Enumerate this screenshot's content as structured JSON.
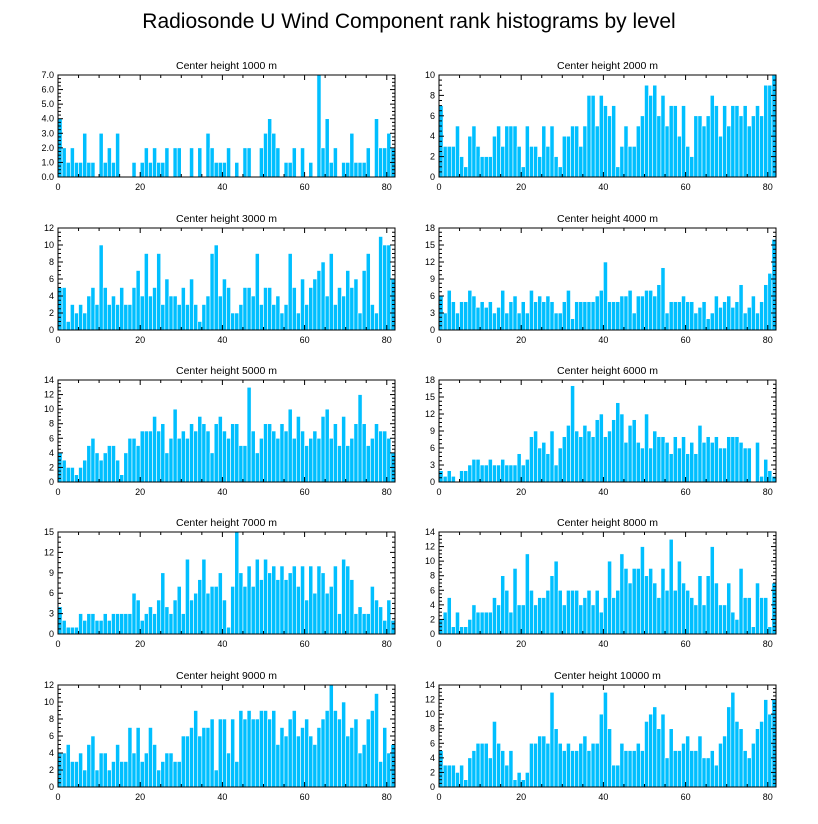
{
  "title": "Radiosonde U Wind Component rank histograms by level",
  "colors": {
    "bar": "#00bfff",
    "bar_edge": "#ffffff",
    "axis": "#000000"
  },
  "chart_data": [
    {
      "type": "bar",
      "title": "Center height 1000 m",
      "xlim": [
        0,
        82
      ],
      "ylim": [
        0,
        7
      ],
      "yticks": [
        "0.0",
        "1.0",
        "2.0",
        "3.0",
        "4.0",
        "5.0",
        "6.0",
        "7.0"
      ],
      "ytick_values": [
        0,
        1,
        2,
        3,
        4,
        5,
        6,
        7
      ],
      "xticks": [
        "0",
        "20",
        "40",
        "60",
        "80"
      ],
      "values": [
        4,
        2,
        1,
        2,
        1,
        1,
        3,
        1,
        1,
        0,
        3,
        1,
        2,
        1,
        3,
        0,
        0,
        0,
        1,
        0,
        1,
        2,
        1,
        2,
        1,
        1,
        2,
        0,
        2,
        2,
        0,
        0,
        2,
        0,
        2,
        0,
        3,
        2,
        1,
        1,
        1,
        2,
        0,
        1,
        0,
        2,
        2,
        0,
        0,
        2,
        3,
        4,
        3,
        2,
        0,
        1,
        1,
        2,
        0,
        2,
        0,
        1,
        0,
        7,
        2,
        4,
        1,
        2,
        0,
        1,
        1,
        3,
        1,
        1,
        1,
        2,
        0,
        4,
        2,
        2,
        3,
        2
      ]
    },
    {
      "type": "bar",
      "title": "Center height 2000 m",
      "xlim": [
        0,
        82
      ],
      "ylim": [
        0,
        10
      ],
      "yticks": [
        "0",
        "2",
        "4",
        "6",
        "8",
        "10"
      ],
      "ytick_values": [
        0,
        2,
        4,
        6,
        8,
        10
      ],
      "xticks": [
        "0",
        "20",
        "40",
        "60",
        "80"
      ],
      "values": [
        7,
        3,
        3,
        3,
        5,
        2,
        1,
        4,
        5,
        3,
        2,
        2,
        2,
        4,
        5,
        3,
        5,
        5,
        5,
        3,
        1,
        5,
        3,
        3,
        2,
        5,
        3,
        5,
        2,
        1,
        4,
        4,
        5,
        5,
        3,
        5,
        8,
        8,
        5,
        8,
        7,
        6,
        7,
        1,
        3,
        5,
        3,
        3,
        5,
        6,
        9,
        8,
        9,
        6,
        8,
        5,
        7,
        7,
        4,
        7,
        3,
        2,
        6,
        6,
        5,
        6,
        8,
        7,
        4,
        7,
        5,
        7,
        7,
        6,
        7,
        5,
        6,
        7,
        6,
        9,
        9,
        10
      ]
    },
    {
      "type": "bar",
      "title": "Center height 3000 m",
      "xlim": [
        0,
        82
      ],
      "ylim": [
        0,
        12
      ],
      "yticks": [
        "0",
        "2",
        "4",
        "6",
        "8",
        "10",
        "12"
      ],
      "ytick_values": [
        0,
        2,
        4,
        6,
        8,
        10,
        12
      ],
      "xticks": [
        "0",
        "20",
        "40",
        "60",
        "80"
      ],
      "values": [
        5,
        5,
        1,
        3,
        2,
        3,
        2,
        4,
        5,
        3,
        10,
        5,
        3,
        4,
        3,
        5,
        3,
        3,
        5,
        7,
        4,
        9,
        4,
        5,
        9,
        3,
        6,
        4,
        4,
        3,
        5,
        3,
        6,
        3,
        1,
        3,
        4,
        9,
        10,
        4,
        6,
        5,
        2,
        2,
        3,
        5,
        5,
        4,
        9,
        3,
        5,
        5,
        3,
        4,
        2,
        3,
        9,
        5,
        2,
        6,
        3,
        5,
        6,
        7,
        8,
        4,
        9,
        3,
        5,
        4,
        7,
        5,
        6,
        2,
        7,
        9,
        3,
        2,
        11,
        10,
        10,
        6
      ]
    },
    {
      "type": "bar",
      "title": "Center height 4000 m",
      "xlim": [
        0,
        82
      ],
      "ylim": [
        0,
        18
      ],
      "yticks": [
        "0",
        "3",
        "6",
        "9",
        "12",
        "15",
        "18"
      ],
      "ytick_values": [
        0,
        3,
        6,
        9,
        12,
        15,
        18
      ],
      "xticks": [
        "0",
        "20",
        "40",
        "60",
        "80"
      ],
      "values": [
        6,
        3,
        7,
        5,
        3,
        5,
        5,
        7,
        6,
        4,
        5,
        4,
        5,
        3,
        4,
        7,
        3,
        5,
        6,
        3,
        5,
        3,
        7,
        5,
        6,
        5,
        6,
        5,
        3,
        3,
        5,
        7,
        2,
        5,
        5,
        5,
        5,
        5,
        6,
        7,
        12,
        5,
        5,
        5,
        6,
        6,
        7,
        3,
        6,
        6,
        7,
        7,
        6,
        8,
        11,
        3,
        5,
        5,
        5,
        6,
        5,
        5,
        3,
        4,
        5,
        2,
        3,
        6,
        4,
        5,
        6,
        4,
        5,
        8,
        3,
        4,
        6,
        3,
        5,
        8,
        10,
        16
      ]
    },
    {
      "type": "bar",
      "title": "Center height 5000 m",
      "xlim": [
        0,
        82
      ],
      "ylim": [
        0,
        14
      ],
      "yticks": [
        "0",
        "2",
        "4",
        "6",
        "8",
        "10",
        "12",
        "14"
      ],
      "ytick_values": [
        0,
        2,
        4,
        6,
        8,
        10,
        12,
        14
      ],
      "xticks": [
        "0",
        "20",
        "40",
        "60",
        "80"
      ],
      "values": [
        4,
        3,
        2,
        2,
        1,
        2,
        3,
        5,
        6,
        4,
        3,
        4,
        5,
        5,
        3,
        1,
        4,
        6,
        6,
        5,
        7,
        7,
        7,
        9,
        7,
        8,
        4,
        6,
        10,
        6,
        7,
        6,
        8,
        7,
        9,
        8,
        7,
        4,
        8,
        9,
        7,
        6,
        8,
        8,
        5,
        5,
        13,
        7,
        4,
        6,
        8,
        8,
        7,
        6,
        8,
        7,
        10,
        6,
        9,
        7,
        5,
        6,
        7,
        6,
        9,
        10,
        6,
        8,
        5,
        9,
        5,
        6,
        8,
        12,
        8,
        5,
        6,
        8,
        7,
        7,
        6,
        4
      ]
    },
    {
      "type": "bar",
      "title": "Center height 6000 m",
      "xlim": [
        0,
        82
      ],
      "ylim": [
        0,
        18
      ],
      "yticks": [
        "0",
        "3",
        "6",
        "9",
        "12",
        "15",
        "18"
      ],
      "ytick_values": [
        0,
        3,
        6,
        9,
        12,
        15,
        18
      ],
      "xticks": [
        "0",
        "20",
        "40",
        "60",
        "80"
      ],
      "values": [
        2,
        1,
        2,
        1,
        0,
        2,
        2,
        3,
        4,
        4,
        3,
        3,
        4,
        3,
        3,
        4,
        3,
        3,
        3,
        5,
        3,
        4,
        8,
        9,
        6,
        7,
        5,
        9,
        3,
        6,
        8,
        10,
        17,
        9,
        8,
        10,
        9,
        8,
        11,
        12,
        8,
        9,
        11,
        14,
        12,
        7,
        10,
        11,
        7,
        6,
        12,
        6,
        9,
        8,
        8,
        7,
        5,
        8,
        6,
        8,
        5,
        7,
        5,
        10,
        7,
        8,
        7,
        8,
        6,
        6,
        8,
        8,
        8,
        7,
        6,
        6,
        0,
        7,
        1,
        4,
        2,
        1
      ]
    },
    {
      "type": "bar",
      "title": "Center height 7000 m",
      "xlim": [
        0,
        82
      ],
      "ylim": [
        0,
        15
      ],
      "yticks": [
        "0",
        "3",
        "6",
        "9",
        "12",
        "15"
      ],
      "ytick_values": [
        0,
        3,
        6,
        9,
        12,
        15
      ],
      "xticks": [
        "0",
        "20",
        "40",
        "60",
        "80"
      ],
      "values": [
        4,
        2,
        1,
        1,
        1,
        3,
        2,
        3,
        3,
        2,
        2,
        3,
        2,
        3,
        3,
        3,
        3,
        3,
        6,
        5,
        2,
        3,
        4,
        3,
        5,
        9,
        4,
        3,
        5,
        7,
        3,
        11,
        5,
        6,
        8,
        11,
        6,
        7,
        7,
        9,
        5,
        1,
        7,
        15,
        9,
        7,
        10,
        7,
        11,
        8,
        11,
        9,
        10,
        8,
        10,
        8,
        9,
        10,
        7,
        10,
        5,
        10,
        6,
        10,
        9,
        6,
        7,
        10,
        3,
        11,
        10,
        8,
        3,
        4,
        3,
        3,
        7,
        5,
        4,
        2,
        5,
        2
      ]
    },
    {
      "type": "bar",
      "title": "Center height 8000 m",
      "xlim": [
        0,
        82
      ],
      "ylim": [
        0,
        14
      ],
      "yticks": [
        "0",
        "2",
        "4",
        "6",
        "8",
        "10",
        "12",
        "14"
      ],
      "ytick_values": [
        0,
        2,
        4,
        6,
        8,
        10,
        12,
        14
      ],
      "xticks": [
        "0",
        "20",
        "40",
        "60",
        "80"
      ],
      "values": [
        2,
        3,
        5,
        1,
        3,
        1,
        1,
        2,
        4,
        3,
        3,
        3,
        3,
        5,
        4,
        8,
        6,
        3,
        9,
        4,
        4,
        11,
        6,
        4,
        5,
        5,
        6,
        8,
        10,
        6,
        4,
        6,
        6,
        6,
        4,
        5,
        6,
        4,
        6,
        3,
        5,
        10,
        5,
        6,
        11,
        9,
        7,
        9,
        9,
        12,
        8,
        9,
        7,
        5,
        9,
        6,
        13,
        6,
        10,
        7,
        6,
        5,
        4,
        8,
        4,
        8,
        12,
        7,
        4,
        4,
        7,
        3,
        2,
        9,
        5,
        5,
        1,
        7,
        5,
        5,
        1,
        7
      ]
    },
    {
      "type": "bar",
      "title": "Center height 9000 m",
      "xlim": [
        0,
        82
      ],
      "ylim": [
        0,
        12
      ],
      "yticks": [
        "0",
        "2",
        "4",
        "6",
        "8",
        "10",
        "12"
      ],
      "ytick_values": [
        0,
        2,
        4,
        6,
        8,
        10,
        12
      ],
      "xticks": [
        "0",
        "20",
        "40",
        "60",
        "80"
      ],
      "values": [
        4,
        4,
        5,
        3,
        3,
        4,
        2,
        5,
        6,
        2,
        4,
        4,
        2,
        3,
        5,
        3,
        3,
        7,
        4,
        7,
        3,
        4,
        7,
        5,
        2,
        3,
        4,
        4,
        3,
        3,
        6,
        6,
        7,
        9,
        6,
        7,
        7,
        8,
        2,
        8,
        8,
        4,
        8,
        3,
        9,
        8,
        9,
        8,
        8,
        9,
        9,
        8,
        9,
        5,
        7,
        6,
        8,
        9,
        6,
        7,
        8,
        6,
        5,
        7,
        8,
        9,
        12,
        9,
        8,
        10,
        6,
        7,
        8,
        4,
        5,
        8,
        9,
        11,
        3,
        7,
        4,
        5
      ]
    },
    {
      "type": "bar",
      "title": "Center height 10000 m",
      "xlim": [
        0,
        82
      ],
      "ylim": [
        0,
        14
      ],
      "yticks": [
        "0",
        "2",
        "4",
        "6",
        "8",
        "10",
        "12",
        "14"
      ],
      "ytick_values": [
        0,
        2,
        4,
        6,
        8,
        10,
        12,
        14
      ],
      "xticks": [
        "0",
        "20",
        "40",
        "60",
        "80"
      ],
      "values": [
        5,
        3,
        3,
        3,
        2,
        3,
        1,
        4,
        5,
        6,
        6,
        6,
        4,
        9,
        6,
        5,
        3,
        5,
        1,
        2,
        1,
        2,
        6,
        6,
        7,
        7,
        6,
        13,
        8,
        6,
        5,
        6,
        5,
        5,
        6,
        7,
        5,
        6,
        6,
        10,
        13,
        8,
        3,
        3,
        6,
        5,
        5,
        5,
        6,
        5,
        9,
        10,
        11,
        8,
        10,
        4,
        8,
        5,
        5,
        6,
        7,
        5,
        5,
        7,
        4,
        4,
        5,
        3,
        6,
        7,
        11,
        13,
        9,
        8,
        5,
        4,
        6,
        8,
        9,
        12,
        10,
        12
      ]
    }
  ]
}
